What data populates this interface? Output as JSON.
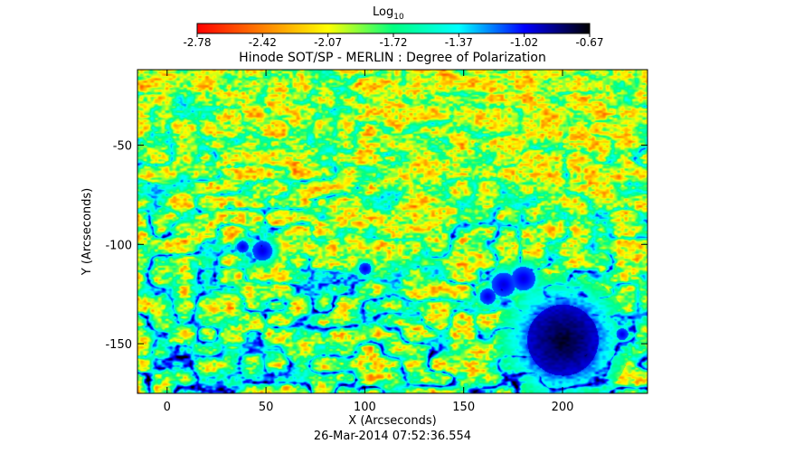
{
  "colorbar": {
    "title": "Log",
    "title_sub": "10",
    "ticks": [
      "-2.78",
      "-2.42",
      "-2.07",
      "-1.72",
      "-1.37",
      "-1.02",
      "-0.67"
    ],
    "range": [
      -2.78,
      -0.67
    ],
    "colormap": [
      "#ff0000",
      "#ff8000",
      "#ffff00",
      "#00ff80",
      "#00ffff",
      "#0000ff",
      "#000000"
    ]
  },
  "footer": {
    "timestamp": "26-Mar-2014 07:52:36.554"
  },
  "chart_data": {
    "type": "heatmap",
    "title": "Hinode SOT/SP - MERLIN : Degree of Polarization",
    "xlabel": "X (Arcseconds)",
    "ylabel": "Y (Arcseconds)",
    "xlim": [
      -15,
      243
    ],
    "ylim": [
      -175,
      -12
    ],
    "xticks": [
      0,
      50,
      100,
      150,
      200
    ],
    "yticks": [
      -50,
      -100,
      -150
    ],
    "value_range": [
      -2.78,
      -0.67
    ],
    "value_label": "Log10 degree of polarization",
    "features": [
      {
        "kind": "sunspot",
        "x": 200,
        "y": -148,
        "r": 18
      },
      {
        "kind": "pore",
        "x": 180,
        "y": -117,
        "r": 6
      },
      {
        "kind": "pore",
        "x": 170,
        "y": -120,
        "r": 6
      },
      {
        "kind": "pore",
        "x": 162,
        "y": -126,
        "r": 4
      },
      {
        "kind": "pore",
        "x": 48,
        "y": -103,
        "r": 5
      },
      {
        "kind": "pore",
        "x": 38,
        "y": -101,
        "r": 3
      },
      {
        "kind": "pore",
        "x": 100,
        "y": -112,
        "r": 3
      },
      {
        "kind": "pore",
        "x": 230,
        "y": -145,
        "r": 3
      }
    ]
  }
}
